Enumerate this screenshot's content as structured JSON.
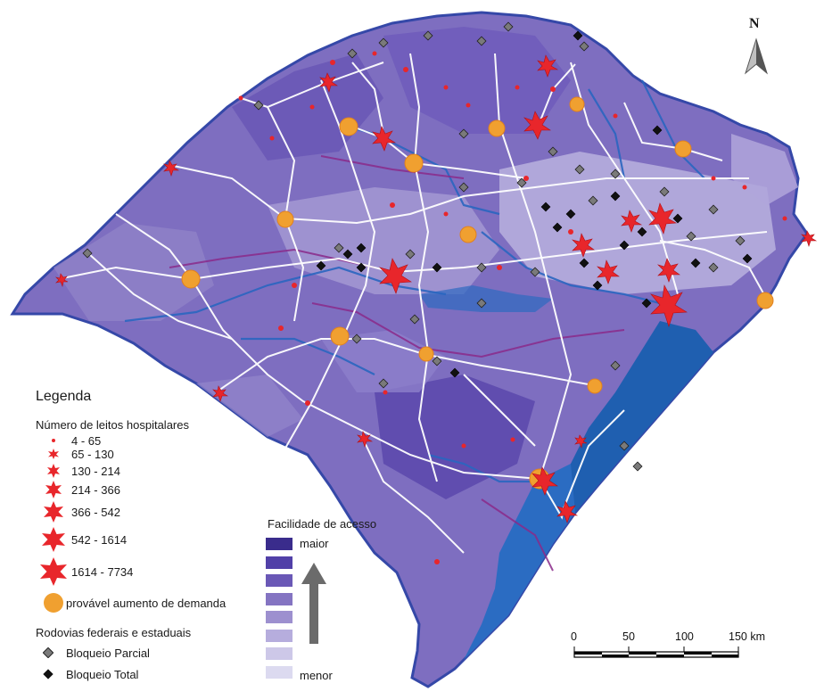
{
  "north": {
    "label": "N"
  },
  "legend": {
    "title": "Legenda",
    "beds_title": "Número de leitos hospitalares",
    "beds_classes": [
      "4 - 65",
      "65 - 130",
      "130 - 214",
      "214 - 366",
      "366 - 542",
      "542 - 1614",
      "1614 - 7734"
    ],
    "demand_label": "provável aumento de demanda",
    "roads_title": "Rodovias federais e estaduais",
    "partial_label": "Bloqueio Parcial",
    "total_label": "Bloqueio Total"
  },
  "access": {
    "title": "Facilidade de acesso",
    "max_label": "maior",
    "min_label": "menor",
    "colors": [
      "#3a2c8c",
      "#5140a8",
      "#6a58b6",
      "#8474c2",
      "#9d90cf",
      "#b6addd",
      "#cdc8e8",
      "#dcdaf0"
    ]
  },
  "scale": {
    "labels": [
      "0",
      "50",
      "100",
      "150 km"
    ]
  },
  "colors": {
    "hospital": "#e8262b",
    "demand": "#f0a030",
    "road": "#ffffff",
    "water": "#1f5fb0",
    "partial_block": "#7a7a7a",
    "total_block": "#111111"
  }
}
